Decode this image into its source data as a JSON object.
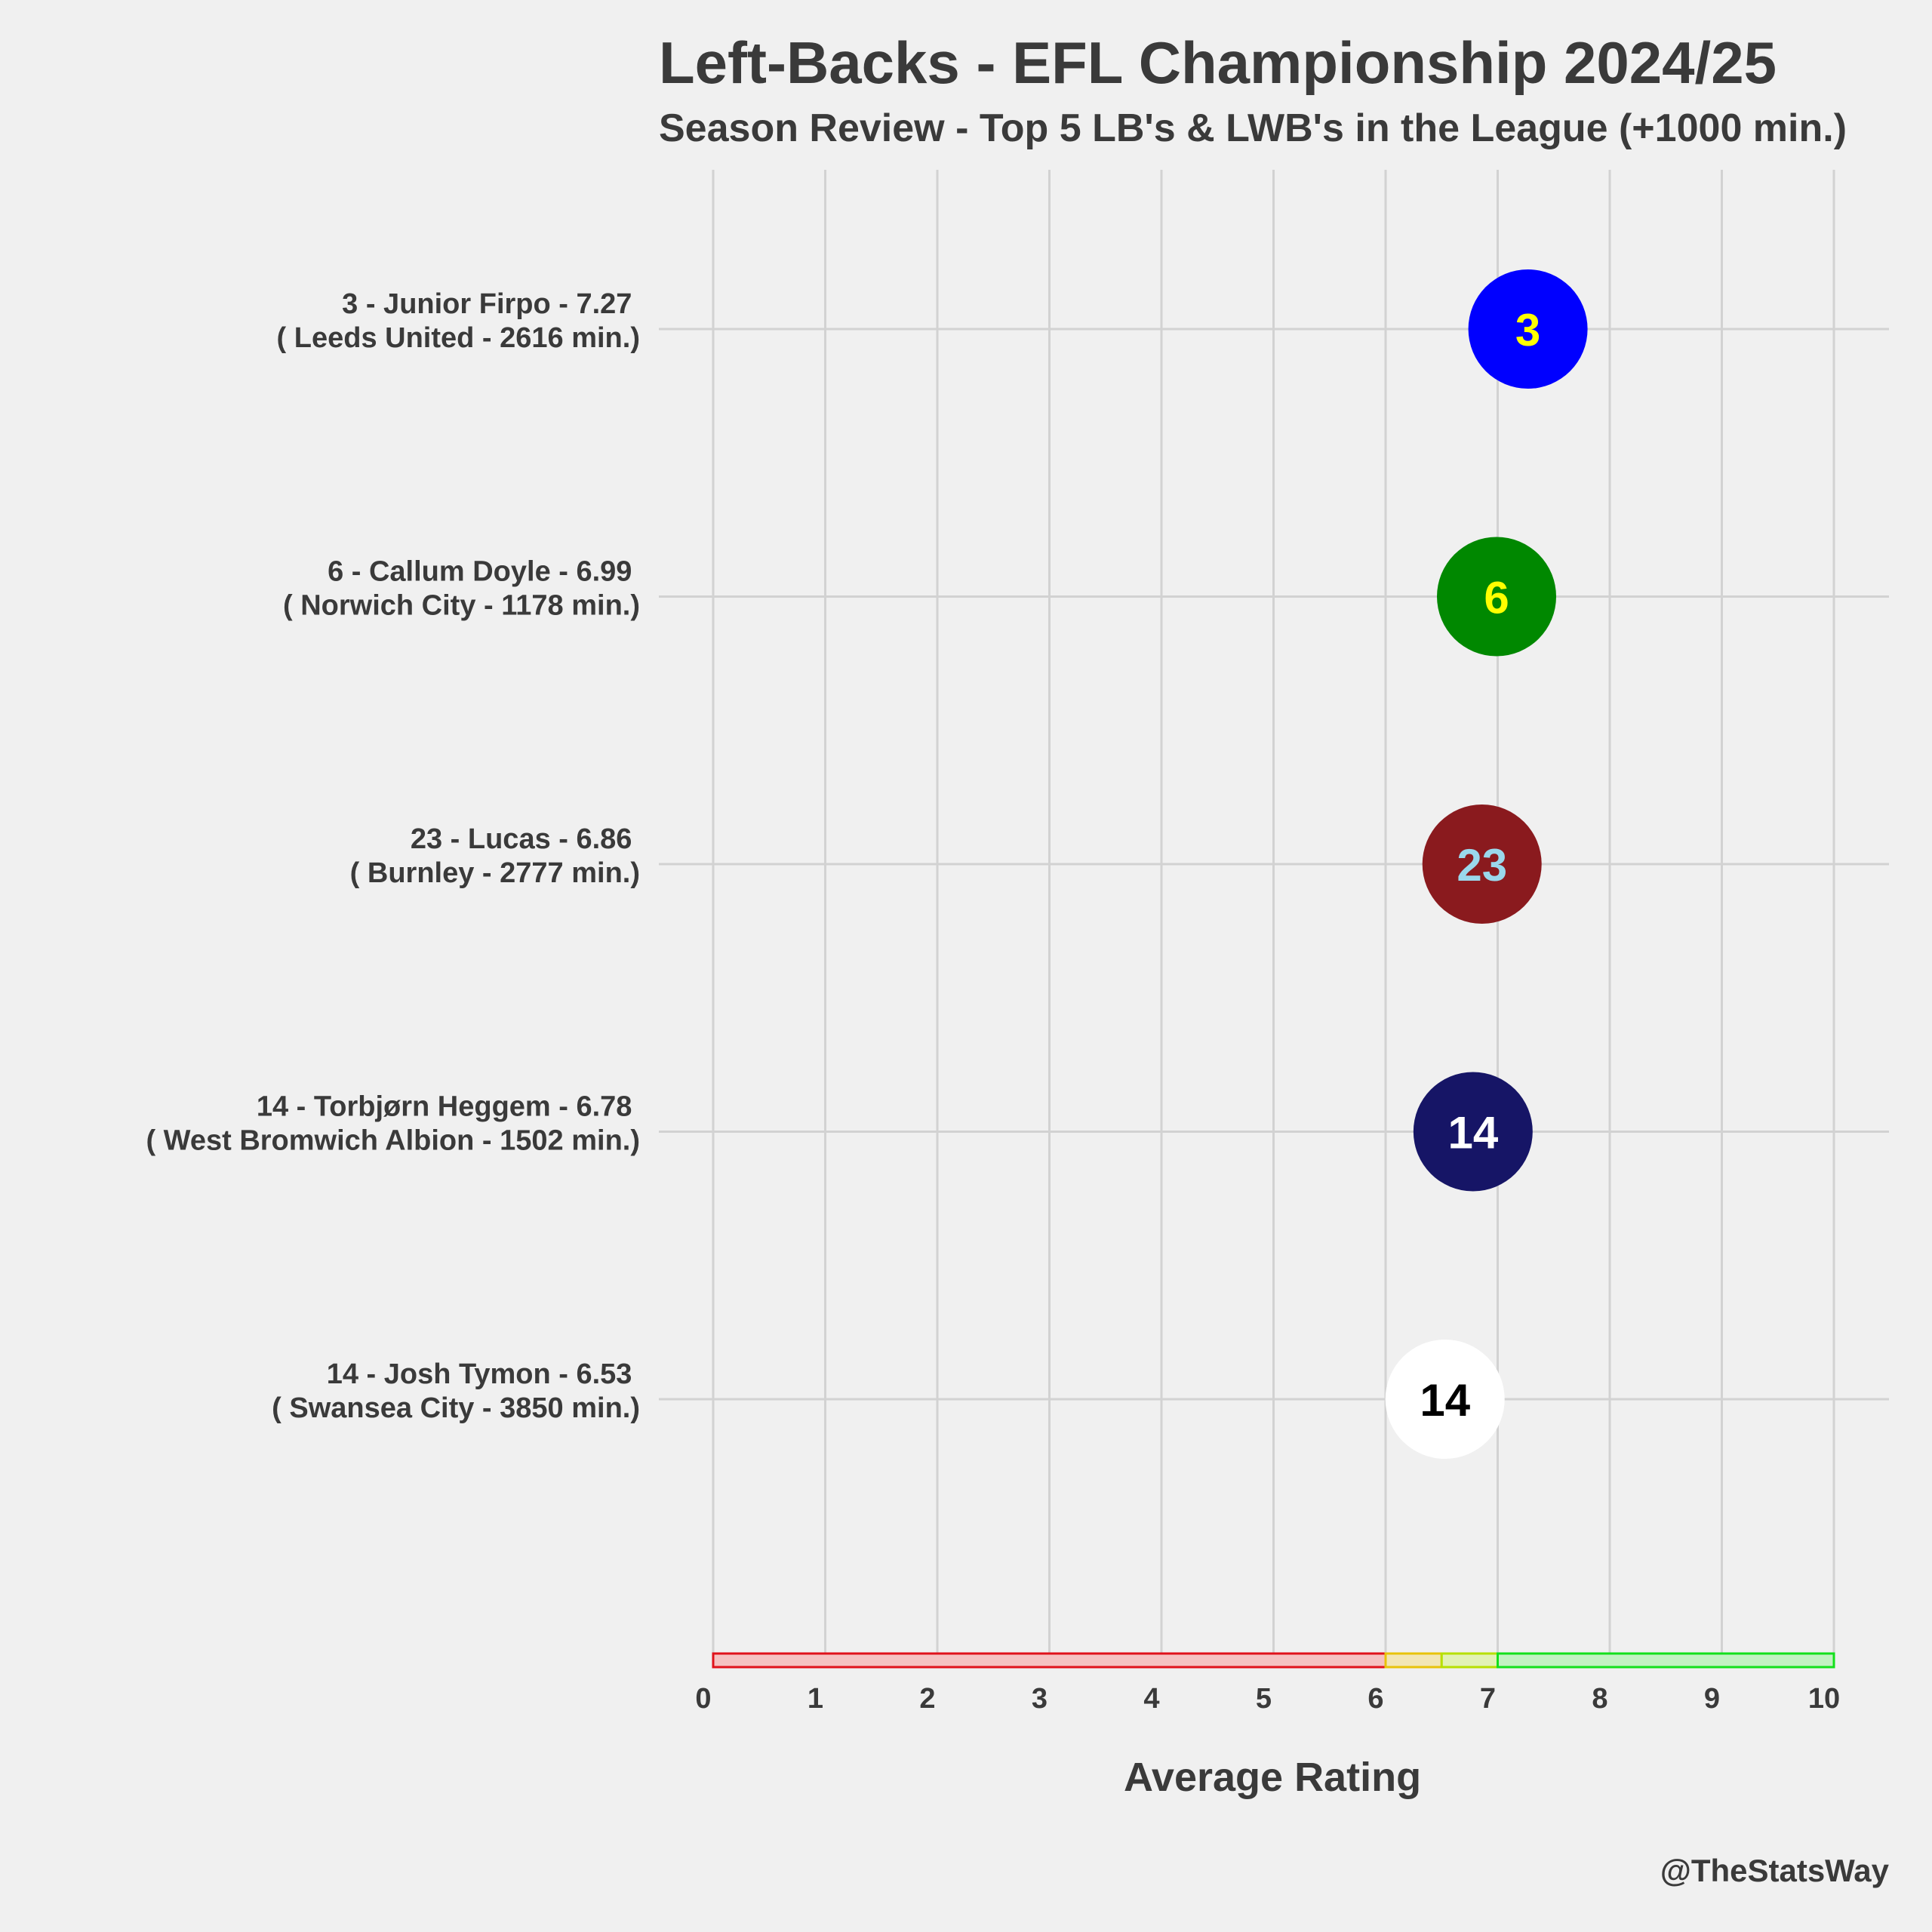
{
  "title": "Left-Backs - EFL Championship 2024/25",
  "subtitle": "Season Review - Top 5 LB's & LWB's in the League (+1000 min.)",
  "credit": "@TheStatsWay",
  "chart_data": {
    "type": "scatter",
    "title": "Left-Backs - EFL Championship 2024/25",
    "subtitle": "Season Review - Top 5 LB's & LWB's in the League (+1000 min.)",
    "xlabel": "Average Rating",
    "ylabel": "",
    "xlim": [
      0,
      10
    ],
    "x_ticks": [
      0,
      1,
      2,
      3,
      4,
      5,
      6,
      7,
      8,
      9,
      10
    ],
    "grid": true,
    "rating_bands": [
      {
        "from": 0,
        "to": 6,
        "fill": "#f5c2c2",
        "stroke": "#e0121b"
      },
      {
        "from": 6,
        "to": 6.5,
        "fill": "#f2e6b5",
        "stroke": "#e8c30a"
      },
      {
        "from": 6.5,
        "to": 7,
        "fill": "#e2f2b5",
        "stroke": "#b7e000"
      },
      {
        "from": 7,
        "to": 10,
        "fill": "#c2f2c2",
        "stroke": "#13e01b"
      }
    ],
    "players": [
      {
        "number": "3",
        "name": "Junior Firpo",
        "rating": 7.27,
        "team": "Leeds United",
        "minutes": 2616,
        "label_line1": "3 - Junior Firpo - 7.27",
        "label_line2": "( Leeds United - 2616 min.)",
        "fill": "#0000ff",
        "text_color": "#ffff00"
      },
      {
        "number": "6",
        "name": "Callum Doyle",
        "rating": 6.99,
        "team": "Norwich City",
        "minutes": 1178,
        "label_line1": "6 - Callum Doyle - 6.99",
        "label_line2": "( Norwich City - 1178 min.)",
        "fill": "#008800",
        "text_color": "#ffff00"
      },
      {
        "number": "23",
        "name": "Lucas",
        "rating": 6.86,
        "team": "Burnley",
        "minutes": 2777,
        "label_line1": "23 - Lucas - 6.86",
        "label_line2": "( Burnley - 2777 min.)",
        "fill": "#8a1a1e",
        "text_color": "#9ad8ec"
      },
      {
        "number": "14",
        "name": "Torbjørn Heggem",
        "rating": 6.78,
        "team": "West Bromwich Albion",
        "minutes": 1502,
        "label_line1": "14 - Torbjørn Heggem - 6.78",
        "label_line2": "( West Bromwich Albion - 1502 min.)",
        "fill": "#161566",
        "text_color": "#ffffff"
      },
      {
        "number": "14",
        "name": "Josh Tymon",
        "rating": 6.53,
        "team": "Swansea City",
        "minutes": 3850,
        "label_line1": "14 - Josh Tymon - 6.53",
        "label_line2": "( Swansea City - 3850 min.)",
        "fill": "#ffffff",
        "text_color": "#000000"
      }
    ]
  }
}
